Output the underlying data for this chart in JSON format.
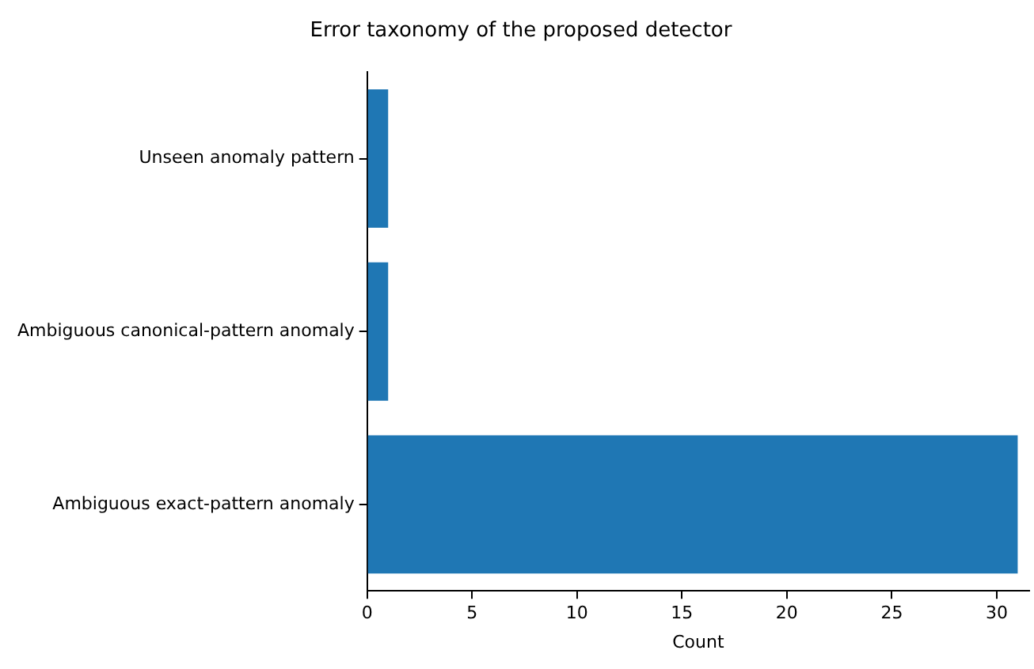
{
  "chart_data": {
    "type": "bar",
    "orientation": "horizontal",
    "title": "Error taxonomy of the proposed detector",
    "xlabel": "Count",
    "categories": [
      "Unseen anomaly pattern",
      "Ambiguous canonical-pattern anomaly",
      "Ambiguous exact-pattern anomaly"
    ],
    "values": [
      1,
      1,
      31
    ],
    "color": "#1f77b4",
    "xlim": [
      0,
      31.55
    ],
    "xticks": [
      0,
      5,
      10,
      15,
      20,
      25,
      30
    ],
    "grid": false,
    "legend": false
  }
}
